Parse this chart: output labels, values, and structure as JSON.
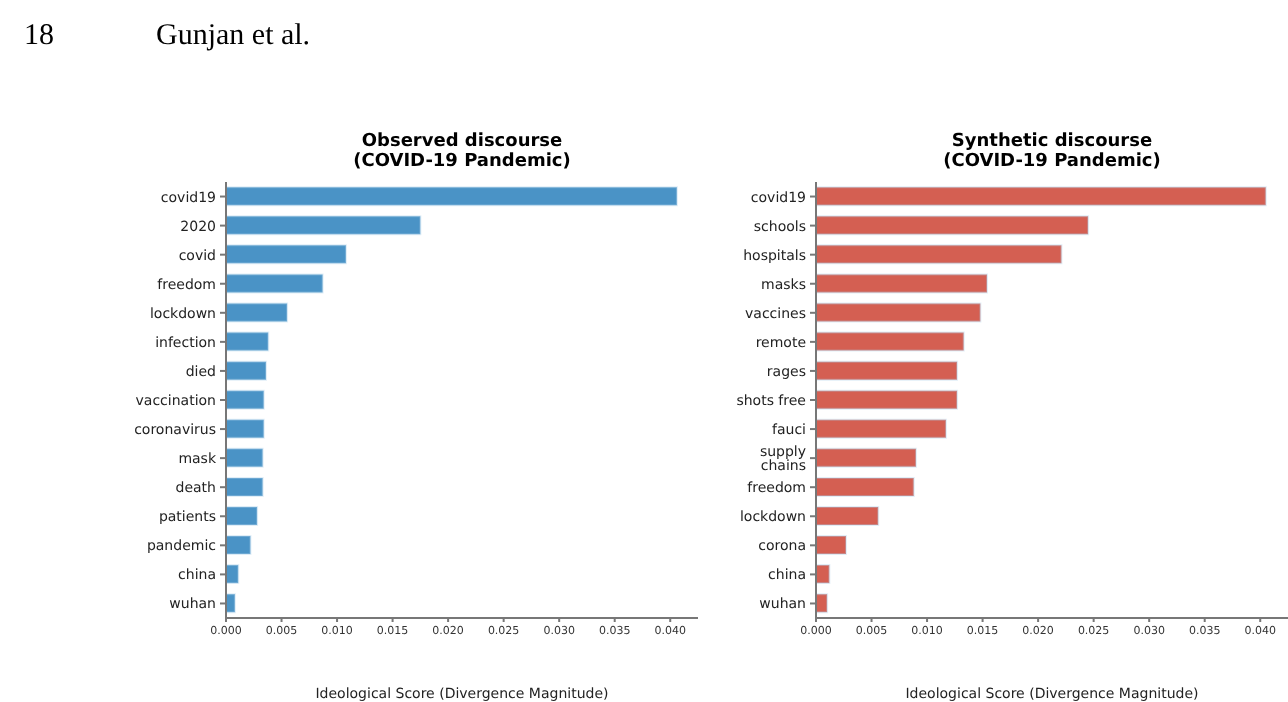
{
  "chart_data": [
    {
      "type": "bar",
      "orientation": "horizontal",
      "title": "Observed discourse\n(COVID-19 Pandemic)",
      "xlabel": "Ideological Score (Divergence Magnitude)",
      "annotations": [
        "18",
        "Gunjan et al."
      ],
      "categories": [
        "covid19",
        "2020",
        "covid",
        "freedom",
        "lockdown",
        "infection",
        "died",
        "vaccination",
        "coronavirus",
        "mask",
        "death",
        "patients",
        "pandemic",
        "china",
        "wuhan"
      ],
      "values": [
        0.0406,
        0.0175,
        0.0108,
        0.0087,
        0.0055,
        0.0038,
        0.0036,
        0.0034,
        0.0034,
        0.0033,
        0.0033,
        0.0028,
        0.0022,
        0.0011,
        0.0008
      ],
      "color": "#4a93c6",
      "xlim": [
        0,
        0.0425
      ],
      "xticks": [
        {
          "value": 0,
          "label": "0.000"
        },
        {
          "value": 0.005,
          "label": "0.005"
        },
        {
          "value": 0.01,
          "label": "0.010"
        },
        {
          "value": 0.015,
          "label": "0.015"
        },
        {
          "value": 0.02,
          "label": "0.020"
        },
        {
          "value": 0.025,
          "label": "0.025"
        },
        {
          "value": 0.03,
          "label": "0.030"
        },
        {
          "value": 0.035,
          "label": "0.035"
        },
        {
          "value": 0.04,
          "label": "0.040"
        }
      ],
      "grid": false,
      "legend": false
    },
    {
      "type": "bar",
      "orientation": "horizontal",
      "title": "Synthetic discourse\n(COVID-19 Pandemic)",
      "xlabel": "Ideological Score (Divergence Magnitude)",
      "categories": [
        "covid19",
        "schools",
        "hospitals",
        "masks",
        "vaccines",
        "remote",
        "rages",
        "shots free",
        "fauci",
        "supply chains",
        "freedom",
        "lockdown",
        "corona",
        "china",
        "wuhan"
      ],
      "values": [
        0.0405,
        0.0245,
        0.0221,
        0.0154,
        0.0148,
        0.0133,
        0.0127,
        0.0127,
        0.0117,
        0.009,
        0.0088,
        0.0056,
        0.0027,
        0.0012,
        0.001
      ],
      "color": "#d45f52",
      "xlim": [
        0,
        0.0425
      ],
      "xticks": [
        {
          "value": 0,
          "label": "0.000"
        },
        {
          "value": 0.005,
          "label": "0.005"
        },
        {
          "value": 0.01,
          "label": "0.010"
        },
        {
          "value": 0.015,
          "label": "0.015"
        },
        {
          "value": 0.02,
          "label": "0.020"
        },
        {
          "value": 0.025,
          "label": "0.025"
        },
        {
          "value": 0.03,
          "label": "0.030"
        },
        {
          "value": 0.035,
          "label": "0.035"
        },
        {
          "value": 0.04,
          "label": "0.040"
        }
      ],
      "grid": false,
      "legend": false
    }
  ]
}
